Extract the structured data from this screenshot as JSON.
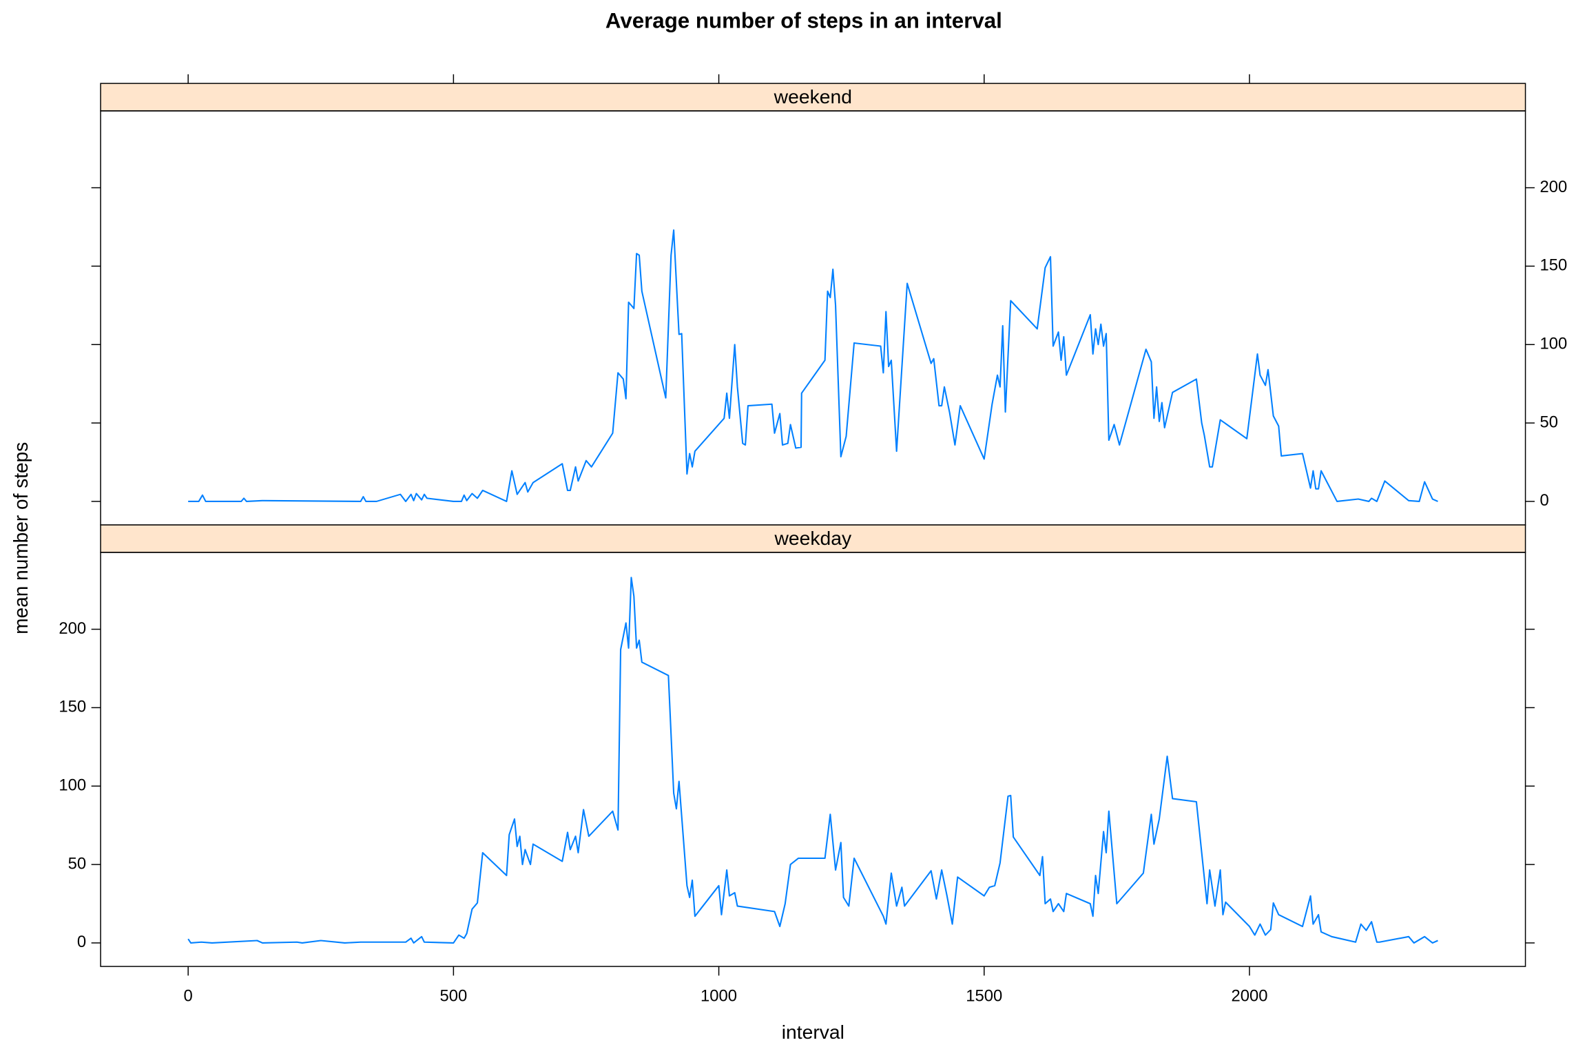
{
  "chart_data": {
    "type": "line",
    "layout": "panels",
    "title": "Average number of steps in an interval",
    "xlabel": "interval",
    "ylabel": "mean number of steps",
    "xlim": [
      -165,
      2520
    ],
    "xticks": [
      0,
      500,
      1000,
      1500,
      2000
    ],
    "ylim": [
      -15,
      249
    ],
    "yticks": [
      0,
      50,
      100,
      150,
      200
    ],
    "strip_color": "#ffe5cc",
    "series": [
      {
        "name": "weekend",
        "color": "#0080ff",
        "x": [
          0,
          20,
          27,
          33,
          100,
          105,
          110,
          140,
          325,
          330,
          335,
          355,
          400,
          410,
          420,
          425,
          430,
          440,
          445,
          450,
          500,
          515,
          520,
          525,
          535,
          545,
          555,
          600,
          610,
          620,
          635,
          640,
          650,
          705,
          715,
          720,
          730,
          735,
          750,
          760,
          800,
          810,
          820,
          825,
          830,
          840,
          845,
          850,
          855,
          900,
          910,
          915,
          925,
          930,
          940,
          945,
          950,
          955,
          1010,
          1015,
          1020,
          1030,
          1035,
          1045,
          1050,
          1055,
          1100,
          1105,
          1115,
          1120,
          1130,
          1135,
          1145,
          1155,
          1156,
          1200,
          1205,
          1210,
          1215,
          1220,
          1230,
          1240,
          1255,
          1305,
          1310,
          1315,
          1320,
          1325,
          1335,
          1355,
          1400,
          1405,
          1415,
          1420,
          1425,
          1435,
          1445,
          1455,
          1500,
          1515,
          1525,
          1530,
          1535,
          1540,
          1550,
          1600,
          1615,
          1625,
          1630,
          1640,
          1645,
          1650,
          1655,
          1700,
          1705,
          1710,
          1715,
          1720,
          1725,
          1730,
          1735,
          1745,
          1755,
          1805,
          1815,
          1820,
          1825,
          1830,
          1835,
          1840,
          1855,
          1900,
          1910,
          1915,
          1925,
          1930,
          1945,
          1995,
          2015,
          2020,
          2030,
          2035,
          2045,
          2055,
          2060,
          2100,
          2115,
          2120,
          2125,
          2130,
          2135,
          2165,
          2205,
          2225,
          2230,
          2240,
          2255,
          2300,
          2320,
          2330,
          2345,
          2355
        ],
        "values": [
          0,
          0,
          4,
          0,
          0,
          2,
          0,
          0.5,
          0,
          3,
          0,
          0,
          4.5,
          0,
          4.5,
          0.5,
          5,
          1,
          4.5,
          2,
          0,
          0,
          4,
          0.5,
          5,
          2,
          7,
          0,
          19.5,
          4.5,
          12,
          6,
          12,
          24,
          7,
          7,
          22,
          13,
          26,
          22,
          43.5,
          82,
          78,
          65.5,
          127,
          123,
          158,
          157,
          134,
          66,
          157,
          173,
          106.5,
          107,
          17.5,
          30.5,
          22,
          32,
          53,
          69,
          53,
          100,
          73,
          37,
          36,
          61,
          62,
          43.5,
          56,
          36,
          37,
          49,
          34,
          34.5,
          69,
          90,
          134,
          130,
          148,
          125,
          28.5,
          41.5,
          101,
          99,
          82,
          121,
          86,
          90,
          32,
          139,
          88,
          91,
          61,
          61,
          73,
          56.5,
          36,
          61,
          27,
          62,
          80.5,
          73,
          112,
          57,
          128,
          110,
          149,
          156,
          99,
          108,
          90,
          105,
          80.5,
          119,
          94,
          110,
          100,
          113,
          99,
          107,
          39,
          49,
          36,
          97,
          89,
          53,
          73,
          51,
          63,
          47,
          69.5,
          78,
          50,
          42,
          22,
          22,
          52,
          40,
          94,
          80.5,
          74,
          84,
          54.5,
          48,
          29,
          30.5,
          8.5,
          19.5,
          8,
          8,
          19.5,
          0,
          1.5,
          0,
          2,
          0,
          13,
          0.5,
          0,
          12.5,
          1.5,
          0
        ]
      },
      {
        "name": "weekday",
        "color": "#0080ff",
        "x": [
          0,
          5,
          25,
          45,
          130,
          140,
          205,
          215,
          250,
          295,
          325,
          410,
          420,
          425,
          440,
          445,
          500,
          510,
          520,
          525,
          535,
          545,
          555,
          600,
          605,
          615,
          620,
          625,
          630,
          635,
          645,
          650,
          705,
          715,
          720,
          730,
          735,
          745,
          755,
          800,
          810,
          815,
          825,
          830,
          835,
          840,
          845,
          850,
          855,
          905,
          915,
          920,
          925,
          940,
          945,
          950,
          955,
          1000,
          1005,
          1015,
          1020,
          1030,
          1035,
          1105,
          1115,
          1125,
          1135,
          1150,
          1200,
          1210,
          1220,
          1230,
          1235,
          1245,
          1255,
          1310,
          1315,
          1325,
          1335,
          1345,
          1350,
          1400,
          1410,
          1420,
          1430,
          1440,
          1450,
          1500,
          1510,
          1520,
          1530,
          1545,
          1550,
          1555,
          1605,
          1610,
          1615,
          1625,
          1630,
          1640,
          1650,
          1655,
          1700,
          1705,
          1710,
          1715,
          1725,
          1730,
          1735,
          1750,
          1800,
          1815,
          1820,
          1830,
          1845,
          1855,
          1900,
          1920,
          1925,
          1935,
          1945,
          1950,
          1955,
          2000,
          2010,
          2020,
          2030,
          2040,
          2045,
          2055,
          2100,
          2115,
          2120,
          2130,
          2135,
          2155,
          2200,
          2210,
          2220,
          2230,
          2240,
          2245,
          2300,
          2310,
          2330,
          2345,
          2355
        ],
        "values": [
          2.5,
          0,
          0.5,
          0,
          1.5,
          0,
          0.5,
          0,
          1.5,
          0,
          0.5,
          0.5,
          3,
          0,
          4,
          0.5,
          0,
          5,
          3,
          6,
          21.5,
          25.5,
          57.5,
          43,
          69,
          79,
          61.5,
          68,
          50,
          59.5,
          50,
          63,
          52,
          70.5,
          59.5,
          68,
          57.5,
          85,
          68,
          84,
          72,
          187,
          204,
          188,
          233,
          221,
          188,
          193,
          179,
          170.5,
          95.5,
          85.5,
          103,
          36.5,
          29,
          40,
          17,
          36.5,
          18,
          46.5,
          30,
          32,
          23.5,
          20,
          10.5,
          25,
          50,
          54,
          54,
          82,
          46.5,
          64,
          29,
          23.5,
          54,
          17,
          12,
          44.5,
          23.5,
          35.5,
          23.5,
          46,
          28,
          46.5,
          30,
          12,
          42,
          30,
          35.5,
          36.5,
          51,
          93.5,
          94,
          67.5,
          43,
          55,
          25,
          28,
          20,
          25,
          20,
          31.5,
          25,
          17,
          43,
          31.5,
          71,
          57.5,
          84,
          25,
          44.5,
          82,
          63,
          79,
          119,
          92,
          90,
          25,
          46.5,
          23.5,
          46.5,
          18,
          26,
          10.5,
          5,
          12,
          5,
          8.5,
          25.5,
          18,
          10.5,
          30,
          12,
          18,
          7,
          4,
          0.5,
          12,
          8,
          13.5,
          0.5,
          0.5,
          4,
          0,
          4,
          0,
          1.5
        ]
      }
    ]
  }
}
